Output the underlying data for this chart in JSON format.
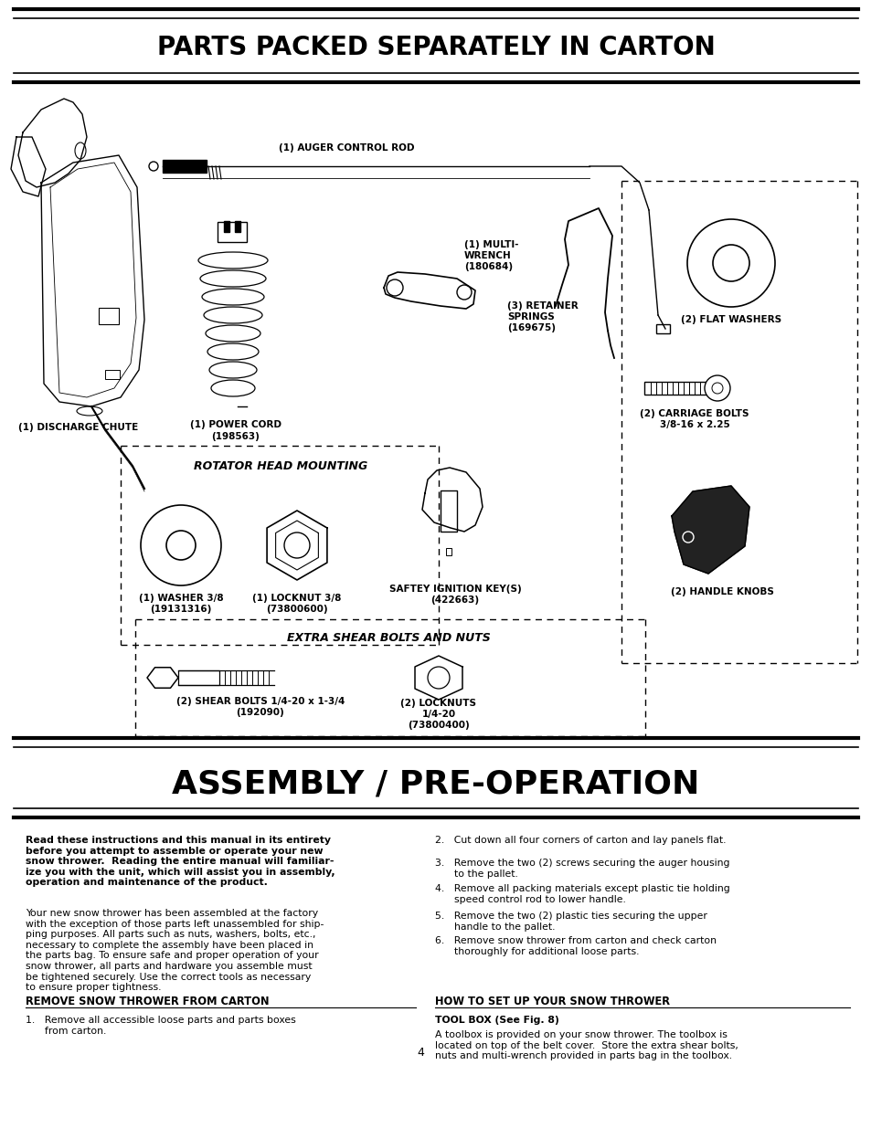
{
  "title1": "PARTS PACKED SEPARATELY IN CARTON",
  "title2": "ASSEMBLY / PRE-OPERATION",
  "bg_color": "#ffffff",
  "title1_fontsize": 20,
  "title2_fontsize": 26,
  "body_fontsize": 7.8,
  "label_fontsize": 7.5,
  "section_header_fontsize": 9,
  "bold_intro": "Read these instructions and this manual in its entirety\nbefore you attempt to assemble or operate your new\nsnow thrower.  Reading the entire manual will familiar-\nize you with the unit, which will assist you in assembly,\noperation and maintenance of the product.",
  "body_para": "Your new snow thrower has been assembled at the factory\nwith the exception of those parts left unassembled for ship-\nping purposes. All parts such as nuts, washers, bolts, etc.,\nnecessary to complete the assembly have been placed in\nthe parts bag. To ensure safe and proper operation of your\nsnow thrower, all parts and hardware you assemble must\nbe tightened securely. Use the correct tools as necessary\nto ensure proper tightness.",
  "remove_header": "REMOVE SNOW THROWER FROM CARTON",
  "remove_item1": "1.   Remove all accessible loose parts and parts boxes\n      from carton.",
  "right_col_items": [
    "2.   Cut down all four corners of carton and lay panels flat.",
    "3.   Remove the two (2) screws securing the auger housing\n      to the pallet.",
    "4.   Remove all packing materials except plastic tie holding\n      speed control rod to lower handle.",
    "5.   Remove the two (2) plastic ties securing the upper\n      handle to the pallet.",
    "6.   Remove snow thrower from carton and check carton\n      thoroughly for additional loose parts."
  ],
  "howto_header": "HOW TO SET UP YOUR SNOW THROWER",
  "toolbox_subheader": "TOOL BOX (See Fig. 8)",
  "toolbox_body": "A toolbox is provided on your snow thrower. The toolbox is\nlocated on top of the belt cover.  Store the extra shear bolts,\nnuts and multi-wrench provided in parts bag in the toolbox.",
  "page_number": "4"
}
